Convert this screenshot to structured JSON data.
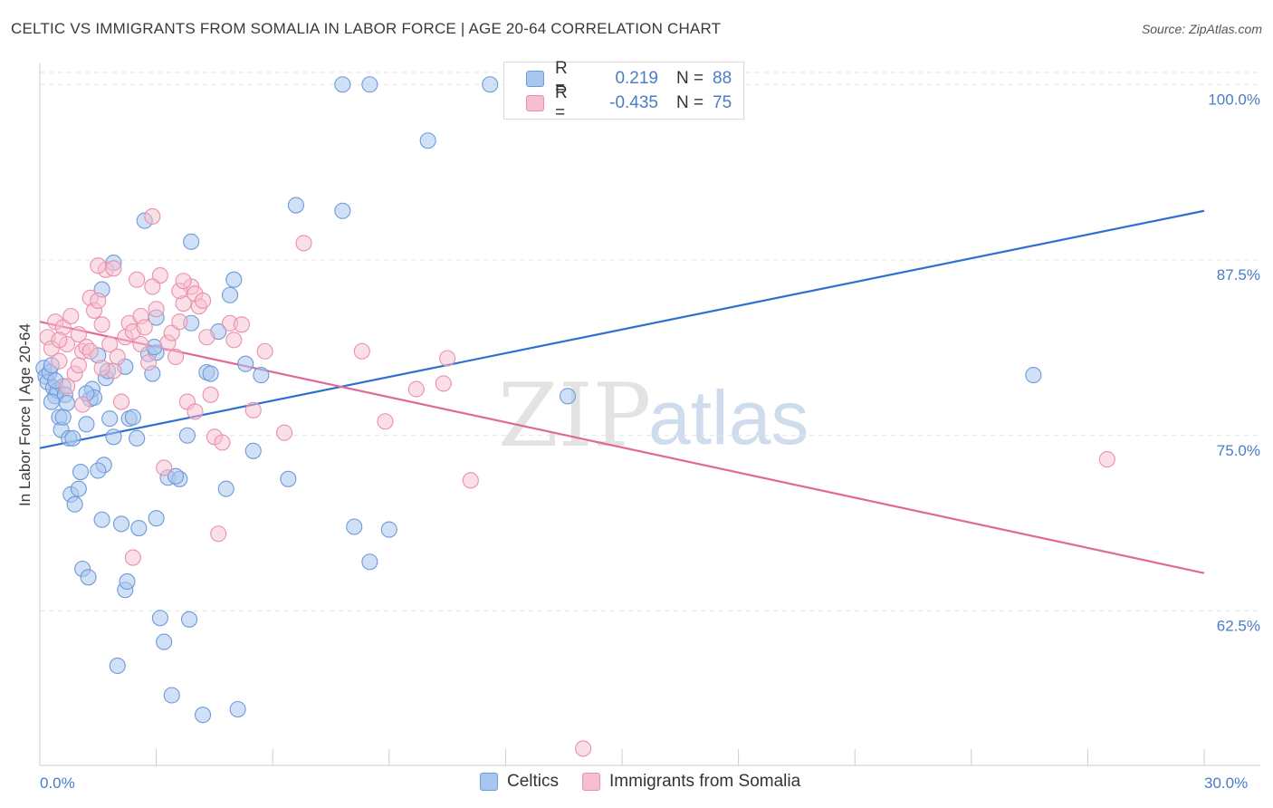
{
  "header": {
    "title": "CELTIC VS IMMIGRANTS FROM SOMALIA IN LABOR FORCE | AGE 20-64 CORRELATION CHART",
    "source": "Source: ZipAtlas.com"
  },
  "legend": {
    "rows": [
      {
        "r_label": "R =",
        "r_value": "0.219",
        "n_label": "N =",
        "n_value": "88"
      },
      {
        "r_label": "R =",
        "r_value": "-0.435",
        "n_label": "N =",
        "n_value": "75"
      }
    ]
  },
  "bottom_legend": {
    "celtics": "Celtics",
    "somalia": "Immigrants from Somalia"
  },
  "watermark": {
    "zip": "ZIP",
    "atlas": "atlas"
  },
  "colors": {
    "blue_fill": "#a9c6ef",
    "blue_stroke": "#6e9ad8",
    "blue_line": "#2f6fcf",
    "pink_fill": "#f6bfd0",
    "pink_stroke": "#eb8fac",
    "pink_line": "#e2689a",
    "tick_text": "#4a7cc7",
    "grid": "#e3e3e3"
  },
  "chart_data": {
    "type": "scatter",
    "ylabel": "In Labor Force | Age 20-64",
    "xlim": [
      0,
      30
    ],
    "ylim": [
      51.5,
      101.5
    ],
    "x_tick_labels": [
      "0.0%",
      "30.0%"
    ],
    "y_ticks": [
      62.5,
      75.0,
      87.5,
      100.0
    ],
    "y_tick_labels": [
      "62.5%",
      "75.0%",
      "87.5%",
      "100.0%"
    ],
    "grid": "horizontal dashed",
    "series": [
      {
        "name": "Celtics",
        "color": "#a9c6ef",
        "trend": {
          "x": [
            0,
            30
          ],
          "y": [
            74.1,
            91.0
          ]
        },
        "points": [
          [
            0.1,
            79.8
          ],
          [
            0.15,
            79.2
          ],
          [
            0.2,
            78.8
          ],
          [
            0.25,
            79.5
          ],
          [
            0.3,
            80.0
          ],
          [
            0.35,
            78.4
          ],
          [
            0.4,
            77.8
          ],
          [
            0.45,
            78.2
          ],
          [
            0.5,
            76.3
          ],
          [
            0.55,
            75.4
          ],
          [
            0.6,
            78.5
          ],
          [
            0.65,
            77.9
          ],
          [
            0.7,
            77.3
          ],
          [
            0.75,
            74.8
          ],
          [
            0.8,
            70.8
          ],
          [
            0.9,
            70.1
          ],
          [
            1.0,
            71.2
          ],
          [
            1.05,
            72.4
          ],
          [
            1.1,
            65.5
          ],
          [
            1.2,
            75.8
          ],
          [
            1.25,
            64.9
          ],
          [
            1.3,
            77.6
          ],
          [
            1.35,
            78.3
          ],
          [
            1.4,
            77.7
          ],
          [
            1.5,
            80.7
          ],
          [
            1.6,
            69.0
          ],
          [
            1.65,
            72.9
          ],
          [
            1.7,
            79.1
          ],
          [
            1.8,
            76.2
          ],
          [
            1.9,
            74.9
          ],
          [
            2.0,
            58.6
          ],
          [
            2.1,
            68.7
          ],
          [
            2.2,
            64.0
          ],
          [
            2.25,
            64.6
          ],
          [
            2.3,
            76.2
          ],
          [
            2.4,
            76.3
          ],
          [
            2.5,
            74.8
          ],
          [
            2.55,
            68.4
          ],
          [
            2.7,
            90.3
          ],
          [
            2.8,
            80.8
          ],
          [
            2.9,
            79.4
          ],
          [
            3.0,
            69.1
          ],
          [
            3.1,
            62.0
          ],
          [
            3.2,
            60.3
          ],
          [
            3.3,
            72.0
          ],
          [
            3.4,
            56.5
          ],
          [
            3.6,
            71.9
          ],
          [
            3.8,
            75.0
          ],
          [
            3.85,
            61.9
          ],
          [
            3.9,
            88.8
          ],
          [
            4.2,
            55.1
          ],
          [
            4.3,
            79.5
          ],
          [
            4.4,
            79.4
          ],
          [
            4.6,
            82.4
          ],
          [
            4.8,
            71.2
          ],
          [
            4.9,
            85.0
          ],
          [
            5.0,
            86.1
          ],
          [
            5.1,
            55.5
          ],
          [
            5.3,
            80.1
          ],
          [
            5.5,
            73.9
          ],
          [
            5.7,
            79.3
          ],
          [
            6.4,
            71.9
          ],
          [
            6.6,
            91.4
          ],
          [
            7.8,
            91.0
          ],
          [
            8.1,
            68.5
          ],
          [
            8.5,
            66.0
          ],
          [
            9.0,
            68.3
          ],
          [
            7.8,
            100.0
          ],
          [
            8.5,
            100.0
          ],
          [
            11.6,
            100.0
          ],
          [
            10.0,
            96.0
          ],
          [
            1.9,
            87.3
          ],
          [
            1.6,
            85.4
          ],
          [
            3.0,
            83.4
          ],
          [
            3.9,
            83.0
          ],
          [
            3.0,
            80.9
          ],
          [
            0.6,
            76.3
          ],
          [
            0.85,
            74.8
          ],
          [
            1.5,
            72.5
          ],
          [
            2.95,
            81.3
          ],
          [
            13.6,
            77.8
          ],
          [
            25.6,
            79.3
          ],
          [
            0.4,
            78.9
          ],
          [
            1.2,
            78.0
          ],
          [
            2.2,
            79.9
          ],
          [
            0.3,
            77.4
          ],
          [
            1.75,
            79.6
          ],
          [
            3.5,
            72.1
          ]
        ]
      },
      {
        "name": "Immigrants from Somalia",
        "color": "#f6bfd0",
        "trend": {
          "x": [
            0,
            30
          ],
          "y": [
            83.1,
            65.2
          ]
        },
        "points": [
          [
            0.2,
            82.0
          ],
          [
            0.3,
            81.2
          ],
          [
            0.4,
            83.1
          ],
          [
            0.5,
            80.3
          ],
          [
            0.6,
            82.7
          ],
          [
            0.7,
            81.5
          ],
          [
            0.8,
            83.5
          ],
          [
            0.9,
            79.4
          ],
          [
            1.0,
            80.0
          ],
          [
            1.1,
            81.0
          ],
          [
            1.2,
            81.3
          ],
          [
            1.3,
            84.8
          ],
          [
            1.4,
            83.9
          ],
          [
            1.5,
            84.6
          ],
          [
            1.6,
            82.9
          ],
          [
            1.7,
            86.8
          ],
          [
            1.8,
            81.5
          ],
          [
            1.9,
            79.6
          ],
          [
            2.0,
            80.6
          ],
          [
            2.1,
            77.4
          ],
          [
            2.2,
            82.0
          ],
          [
            2.3,
            83.0
          ],
          [
            2.4,
            82.4
          ],
          [
            2.5,
            86.1
          ],
          [
            2.6,
            83.5
          ],
          [
            2.7,
            82.7
          ],
          [
            2.8,
            80.2
          ],
          [
            2.9,
            90.6
          ],
          [
            3.0,
            84.0
          ],
          [
            3.1,
            86.4
          ],
          [
            3.2,
            72.7
          ],
          [
            3.3,
            81.6
          ],
          [
            3.4,
            82.3
          ],
          [
            3.5,
            80.6
          ],
          [
            3.6,
            83.1
          ],
          [
            3.7,
            84.4
          ],
          [
            3.8,
            77.4
          ],
          [
            3.9,
            85.6
          ],
          [
            4.0,
            76.7
          ],
          [
            4.1,
            84.2
          ],
          [
            4.3,
            82.0
          ],
          [
            4.4,
            77.9
          ],
          [
            4.5,
            74.9
          ],
          [
            4.6,
            68.0
          ],
          [
            4.7,
            74.5
          ],
          [
            4.9,
            83.0
          ],
          [
            5.0,
            81.8
          ],
          [
            5.2,
            82.9
          ],
          [
            5.5,
            76.8
          ],
          [
            5.8,
            81.0
          ],
          [
            6.3,
            75.2
          ],
          [
            6.8,
            88.7
          ],
          [
            8.3,
            81.0
          ],
          [
            8.9,
            76.0
          ],
          [
            9.7,
            78.3
          ],
          [
            10.4,
            78.7
          ],
          [
            10.5,
            80.5
          ],
          [
            11.1,
            71.8
          ],
          [
            14.0,
            52.7
          ],
          [
            27.5,
            73.3
          ],
          [
            1.9,
            86.9
          ],
          [
            2.4,
            66.3
          ],
          [
            1.5,
            87.1
          ],
          [
            0.5,
            81.8
          ],
          [
            1.0,
            82.2
          ],
          [
            1.6,
            79.8
          ],
          [
            3.6,
            85.3
          ],
          [
            4.0,
            85.1
          ],
          [
            4.2,
            84.6
          ],
          [
            2.9,
            85.6
          ],
          [
            1.3,
            81.0
          ],
          [
            0.7,
            78.5
          ],
          [
            3.7,
            86.0
          ],
          [
            2.6,
            81.5
          ],
          [
            1.1,
            77.2
          ]
        ]
      }
    ]
  }
}
